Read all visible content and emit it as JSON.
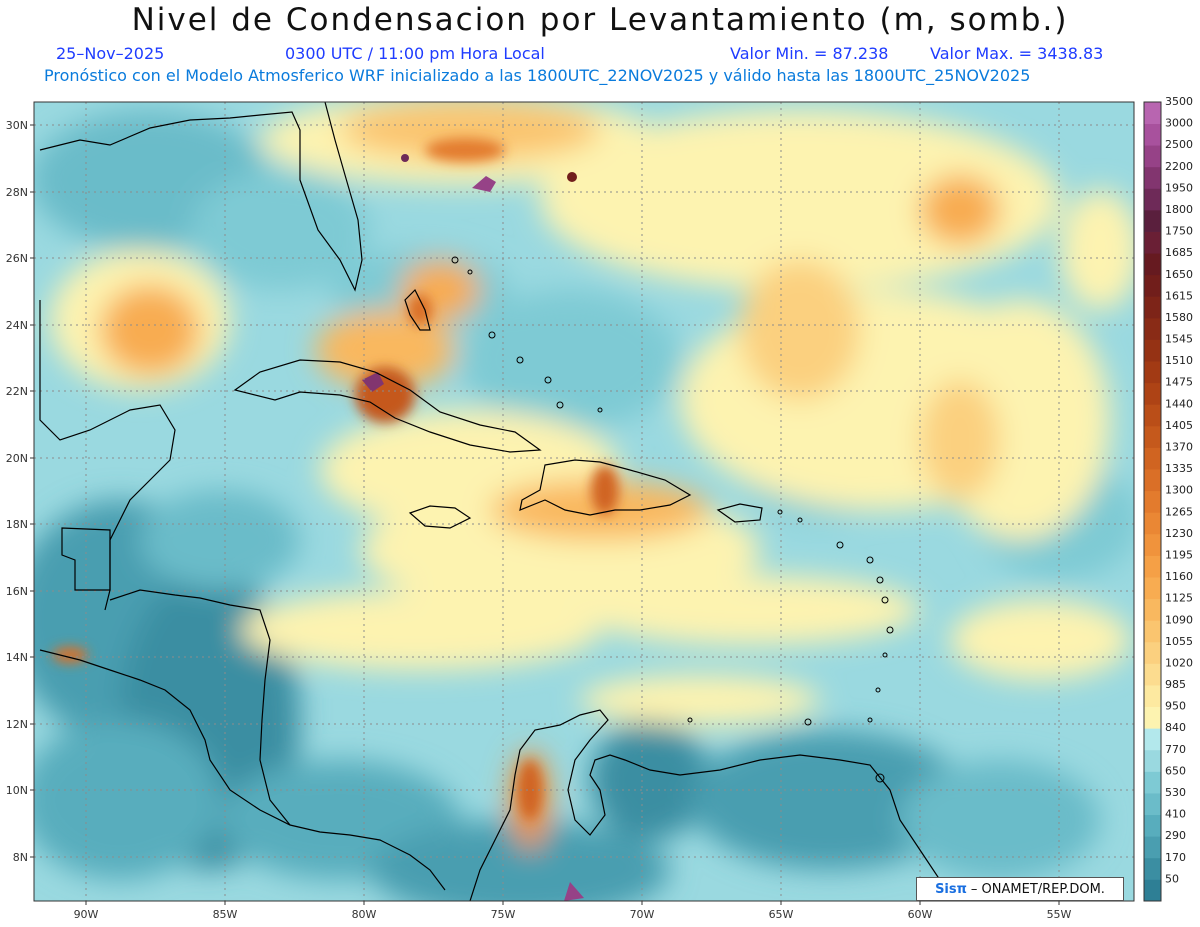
{
  "title": "Nivel de Condensacion por Levantamiento (m, somb.)",
  "date": "25–Nov–2025",
  "time": "0300 UTC / 11:00 pm Hora Local",
  "value_min": "Valor Min. = 87.238",
  "value_max": "Valor Max. = 3438.83",
  "model_info": "Pronóstico con el Modelo Atmosferico WRF inicializado a las 1800UTC_22NOV2025 y válido hasta las  1800UTC_25NOV2025",
  "credit": {
    "brand": "Sisπ",
    "text": "– ONAMET/REP.DOM."
  },
  "lat_labels": [
    "30N",
    "28N",
    "26N",
    "24N",
    "22N",
    "20N",
    "18N",
    "16N",
    "14N",
    "12N",
    "10N",
    "8N"
  ],
  "lon_labels": [
    "90W",
    "85W",
    "80W",
    "75W",
    "70W",
    "65W",
    "60W",
    "55W"
  ],
  "legend": {
    "values": [
      "50",
      "170",
      "290",
      "410",
      "530",
      "650",
      "770",
      "840",
      "950",
      "985",
      "1020",
      "1055",
      "1090",
      "1125",
      "1160",
      "1195",
      "1230",
      "1265",
      "1300",
      "1335",
      "1370",
      "1405",
      "1440",
      "1475",
      "1510",
      "1545",
      "1580",
      "1615",
      "1650",
      "1685",
      "1750",
      "1800",
      "1950",
      "2200",
      "2500",
      "3000",
      "3500"
    ],
    "colors": [
      "#2e7f95",
      "#3b8ea2",
      "#4a9eb0",
      "#58adbd",
      "#6bbcc9",
      "#7ecad4",
      "#9ad9e0",
      "#b3e8ec",
      "#fdf3b0",
      "#fde9a0",
      "#fcdc8f",
      "#fbd07f",
      "#fac56f",
      "#f9b85f",
      "#f8ac51",
      "#f5a046",
      "#f0933c",
      "#ea8734",
      "#e37b2d",
      "#da6f27",
      "#d06421",
      "#c5591c",
      "#ba4e18",
      "#ae4315",
      "#a23a14",
      "#953214",
      "#892b16",
      "#7d2418",
      "#711e1b",
      "#661a20",
      "#6a1f35",
      "#5a1f3d",
      "#6e2a58",
      "#82356f",
      "#964287",
      "#a8519d",
      "#b865b0"
    ]
  }
}
